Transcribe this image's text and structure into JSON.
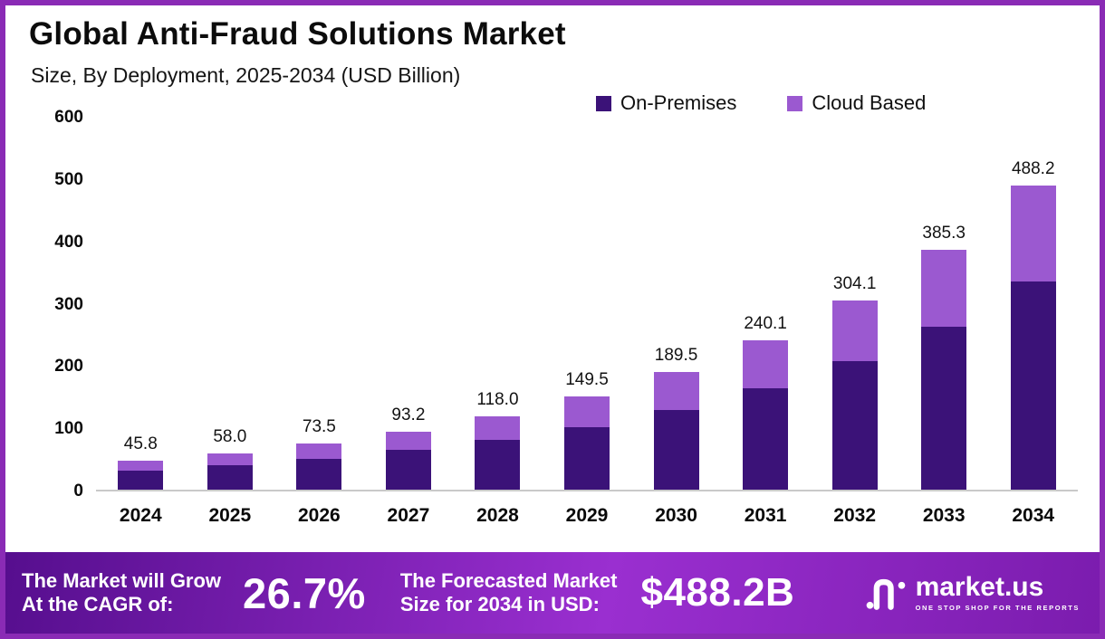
{
  "header": {
    "title": "Global Anti-Fraud Solutions Market",
    "subtitle": "Size, By Deployment, 2025-2034 (USD Billion)"
  },
  "colors": {
    "on_premises": "#3b1278",
    "cloud_based": "#9b59d0",
    "frame_border": "#8a2bb5",
    "banner_start": "#560e8e",
    "banner_mid": "#9a2fd0",
    "banner_end": "#7b1cae",
    "axis_line": "#c9c9c9"
  },
  "chart_data": {
    "type": "bar",
    "stacked": true,
    "title": "Global Anti-Fraud Solutions Market Size, By Deployment, 2025-2034 (USD Billion)",
    "categories": [
      "2024",
      "2025",
      "2026",
      "2027",
      "2028",
      "2029",
      "2030",
      "2031",
      "2032",
      "2033",
      "2034"
    ],
    "series": [
      {
        "name": "On-Premises",
        "color": "#3b1278",
        "values": [
          31.1,
          39.4,
          50.0,
          63.4,
          80.2,
          100.2,
          127.9,
          163.3,
          206.8,
          262.0,
          334.4
        ]
      },
      {
        "name": "Cloud Based",
        "color": "#9b59d0",
        "values": [
          14.7,
          18.6,
          23.5,
          29.8,
          37.8,
          49.3,
          61.6,
          76.8,
          97.3,
          123.3,
          153.8
        ]
      }
    ],
    "totals": [
      45.8,
      58.0,
      73.5,
      93.2,
      118.0,
      149.5,
      189.5,
      240.1,
      304.1,
      385.3,
      488.2
    ],
    "xlabel": "",
    "ylabel": "",
    "ylim": [
      0,
      600
    ],
    "yticks": [
      0,
      100,
      200,
      300,
      400,
      500,
      600
    ],
    "grid": false,
    "legend_position": "top-right"
  },
  "footer": {
    "cagr_label_line1": "The Market will Grow",
    "cagr_label_line2": "At the CAGR of:",
    "cagr_value": "26.7%",
    "forecast_label_line1": "The Forecasted Market",
    "forecast_label_line2": "Size for 2034 in USD:",
    "forecast_value": "$488.2B",
    "brand_name": "market.us",
    "brand_tagline": "ONE STOP SHOP FOR THE REPORTS"
  }
}
